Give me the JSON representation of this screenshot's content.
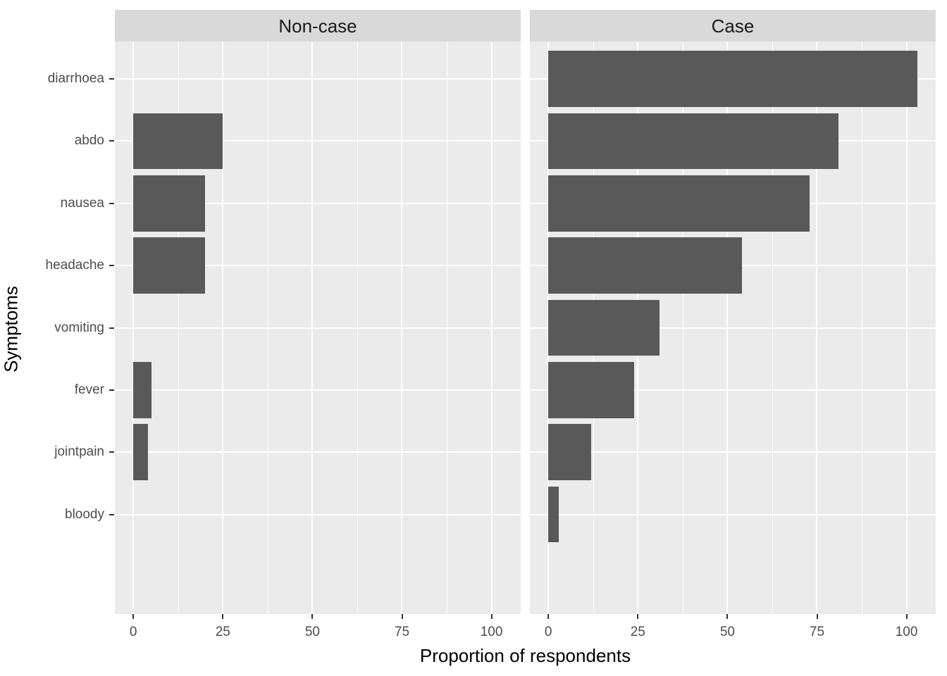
{
  "chart_data": {
    "type": "bar",
    "orientation": "horizontal",
    "xlabel": "Proportion of respondents",
    "ylabel": "Symptoms",
    "categories": [
      "diarrhoea",
      "abdo",
      "nausea",
      "headache",
      "vomiting",
      "fever",
      "jointpain",
      "bloody"
    ],
    "facets": [
      {
        "label": "Non-case",
        "values": [
          0,
          25,
          20,
          20,
          0,
          5,
          4,
          0
        ]
      },
      {
        "label": "Case",
        "values": [
          103,
          81,
          73,
          54,
          31,
          24,
          12,
          3
        ]
      }
    ],
    "x_major_ticks": [
      0,
      25,
      50,
      75,
      100
    ],
    "x_minor_ticks": [
      12.5,
      37.5,
      62.5,
      87.5
    ],
    "xlim": [
      -5.15,
      108.15
    ],
    "bar_thickness": 0.9,
    "category_expansion": 0.6,
    "legend_position": "none",
    "grid": "white major and minor gridlines on grey panel",
    "style": "ggplot2 grey theme, two facet columns sharing axes"
  },
  "colors": {
    "bar": "#595959",
    "panel_background": "#EBEBEB",
    "strip_background": "#D9D9D9",
    "grid": "#FFFFFF",
    "axis_text": "#4D4D4D",
    "strip_text": "#1A1A1A",
    "axis_title": "#000000",
    "tick_mark": "#333333",
    "figure_background": "#FFFFFF"
  }
}
